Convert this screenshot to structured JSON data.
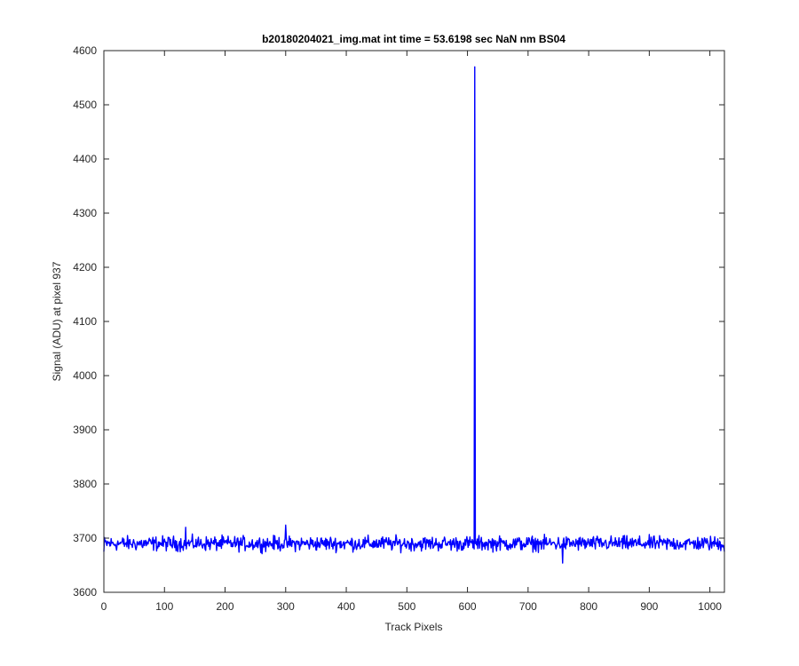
{
  "chart_data": {
    "type": "line",
    "title": "b20180204021_img.mat int time = 53.6198 sec  NaN nm BS04",
    "xlabel": "Track Pixels",
    "ylabel": "Signal (ADU) at pixel 937",
    "xlim": [
      0,
      1024
    ],
    "ylim": [
      3600,
      4600
    ],
    "xticks": [
      "0",
      "100",
      "200",
      "300",
      "400",
      "500",
      "600",
      "700",
      "800",
      "900",
      "1000"
    ],
    "yticks": [
      "3600",
      "3700",
      "3800",
      "3900",
      "4000",
      "4100",
      "4200",
      "4300",
      "4400",
      "4500",
      "4600"
    ],
    "grid": false,
    "line_color": "#0000ff",
    "series": [
      {
        "values_note": "noisy baseline ~3690 ADU across 1024 pixels with a single spike",
        "baseline": 3690,
        "noise_amplitude": 12,
        "spike": {
          "x": 612,
          "y": 4570
        },
        "notable_points": [
          {
            "x": 0,
            "y": 3675
          },
          {
            "x": 135,
            "y": 3720
          },
          {
            "x": 300,
            "y": 3724
          },
          {
            "x": 611,
            "y": 3680
          },
          {
            "x": 612,
            "y": 4570
          },
          {
            "x": 613,
            "y": 3690
          },
          {
            "x": 757,
            "y": 3654
          },
          {
            "x": 1024,
            "y": 3675
          }
        ]
      }
    ]
  }
}
